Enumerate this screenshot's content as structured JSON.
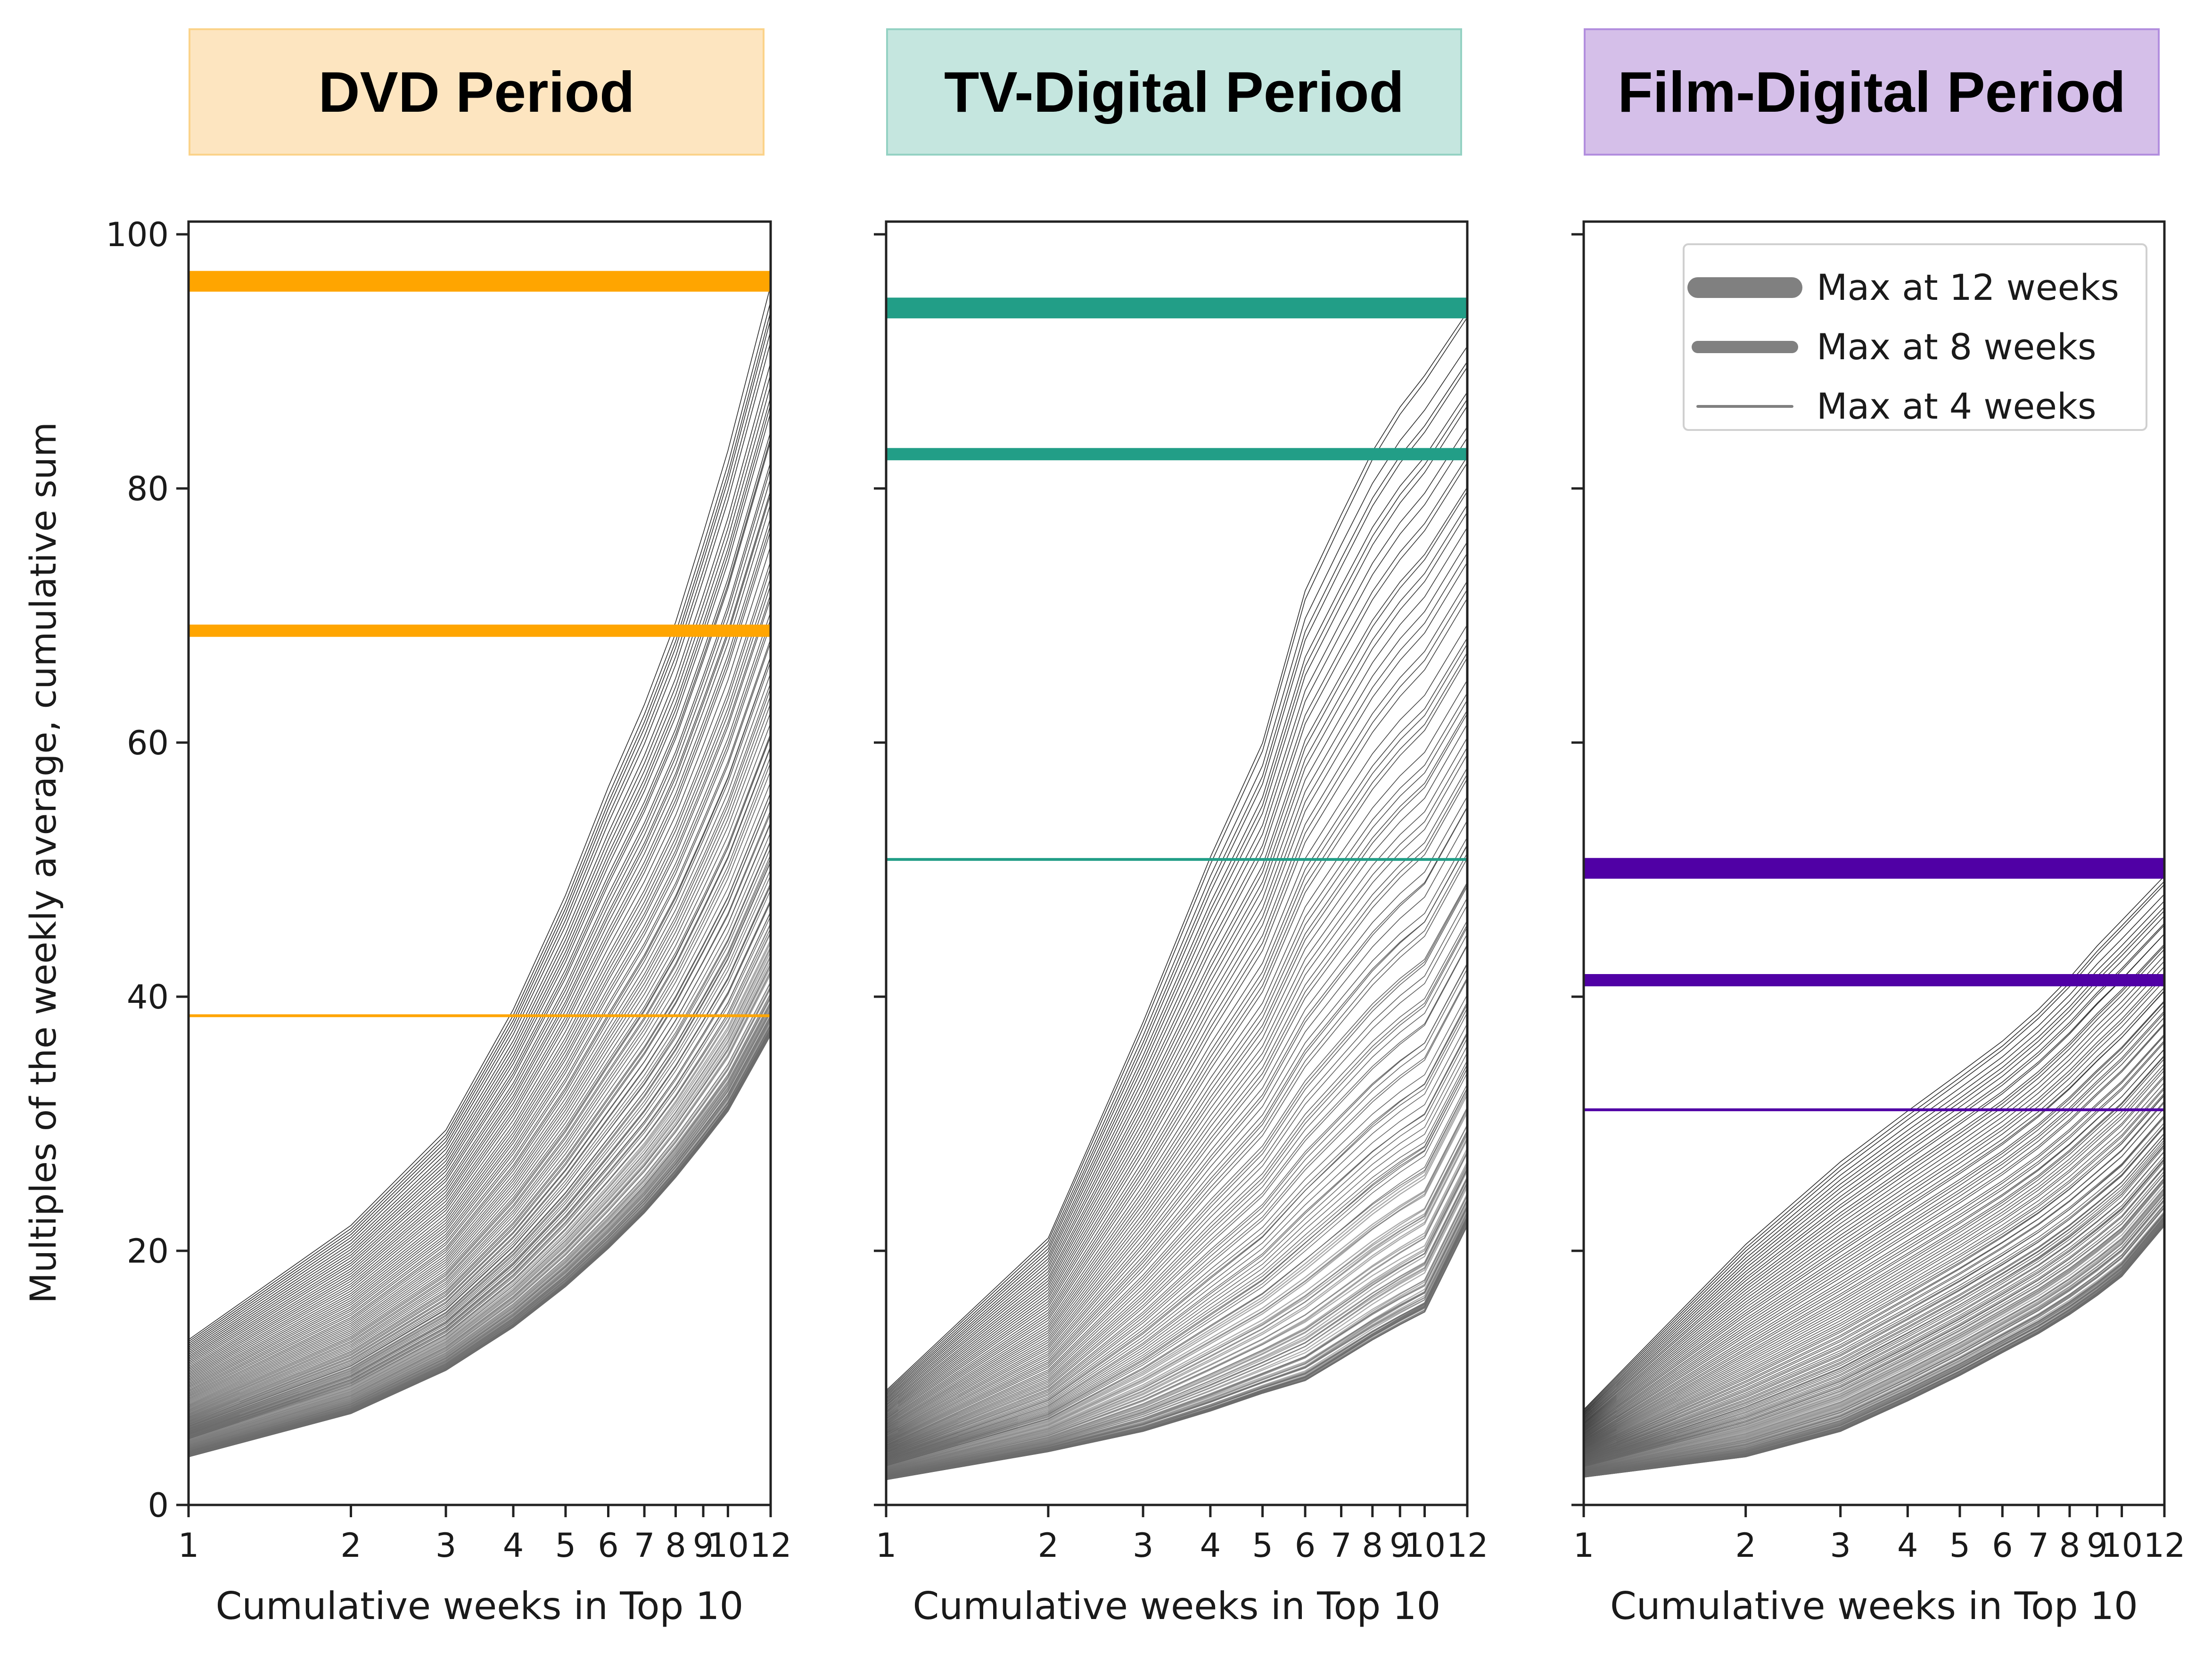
{
  "figure": {
    "ylabel": "Multiples of the weekly average, cumulative sum",
    "legend": {
      "placement": "top-right",
      "entries": [
        {
          "label": "Max at 12 weeks",
          "max_week": 12
        },
        {
          "label": "Max at 8 weeks",
          "max_week": 8
        },
        {
          "label": "Max at 4 weeks",
          "max_week": 4
        }
      ],
      "color": "#808080"
    }
  },
  "panels": [
    {
      "title": "DVD Period",
      "header_fill": "#fde5c0",
      "header_border": "#fbd38a",
      "accent": "#ffa500"
    },
    {
      "title": "TV-Digital Period",
      "header_fill": "#c5e6df",
      "header_border": "#94d2c3",
      "accent": "#229e87"
    },
    {
      "title": "Film-Digital Period",
      "header_fill": "#d5bfe9",
      "header_border": "#b28ede",
      "accent": "#5000a5"
    }
  ],
  "chart_data": [
    {
      "type": "line",
      "title": "DVD Period",
      "xlabel": "Cumulative weeks in Top 10",
      "ylabel": "Multiples of the weekly average, cumulative sum",
      "x_scale": "log",
      "xticks": [
        1,
        2,
        3,
        4,
        5,
        6,
        7,
        8,
        9,
        10,
        12
      ],
      "xlim": [
        1,
        12
      ],
      "yticks": [
        0,
        20,
        40,
        60,
        80,
        100
      ],
      "ylim": [
        0,
        101
      ],
      "max_lines": [
        {
          "label": "Max at 12 weeks",
          "max_week": 12,
          "value": 96.3
        },
        {
          "label": "Max at 8 weeks",
          "max_week": 8,
          "value": 68.8
        },
        {
          "label": "Max at 4 weeks",
          "max_week": 4,
          "value": 38.5
        }
      ],
      "envelope": {
        "title_series_approx": 200,
        "upper": [
          13.0,
          22.0,
          29.5,
          39.0,
          48.0,
          56.5,
          63.0,
          69.5,
          76.5,
          83.0,
          96.0
        ],
        "lower": [
          3.8,
          7.2,
          10.6,
          14.0,
          17.2,
          20.2,
          23.0,
          25.8,
          28.5,
          31.0,
          37.0
        ]
      }
    },
    {
      "type": "line",
      "title": "TV-Digital Period",
      "xlabel": "Cumulative weeks in Top 10",
      "x_scale": "log",
      "xticks": [
        1,
        2,
        3,
        4,
        5,
        6,
        7,
        8,
        9,
        10,
        12
      ],
      "xlim": [
        1,
        12
      ],
      "yticks": [
        0,
        20,
        40,
        60,
        80,
        100
      ],
      "ylim": [
        0,
        101
      ],
      "max_lines": [
        {
          "label": "Max at 12 weeks",
          "max_week": 12,
          "value": 94.2
        },
        {
          "label": "Max at 8 weeks",
          "max_week": 8,
          "value": 82.7
        },
        {
          "label": "Max at 4 weeks",
          "max_week": 4,
          "value": 50.8
        }
      ],
      "envelope": {
        "title_series_approx": 200,
        "upper": [
          9.0,
          21.0,
          38.0,
          51.0,
          60.0,
          72.0,
          78.0,
          83.0,
          86.5,
          89.0,
          94.0
        ],
        "lower": [
          2.0,
          4.2,
          5.8,
          7.4,
          8.8,
          9.8,
          11.5,
          13.0,
          14.2,
          15.2,
          22.0
        ]
      }
    },
    {
      "type": "line",
      "title": "Film-Digital Period",
      "xlabel": "Cumulative weeks in Top 10",
      "x_scale": "log",
      "xticks": [
        1,
        2,
        3,
        4,
        5,
        6,
        7,
        8,
        9,
        10,
        12
      ],
      "xlim": [
        1,
        12
      ],
      "yticks": [
        0,
        20,
        40,
        60,
        80,
        100
      ],
      "ylim": [
        0,
        101
      ],
      "max_lines": [
        {
          "label": "Max at 12 weeks",
          "max_week": 12,
          "value": 50.1
        },
        {
          "label": "Max at 8 weeks",
          "max_week": 8,
          "value": 41.3
        },
        {
          "label": "Max at 4 weeks",
          "max_week": 4,
          "value": 31.1
        }
      ],
      "envelope": {
        "title_series_approx": 200,
        "upper": [
          7.5,
          20.5,
          27.0,
          31.0,
          34.0,
          36.5,
          39.0,
          41.5,
          44.0,
          46.0,
          49.5
        ],
        "lower": [
          2.2,
          3.8,
          5.8,
          8.2,
          10.2,
          12.0,
          13.5,
          15.0,
          16.5,
          18.0,
          22.0
        ]
      }
    }
  ]
}
